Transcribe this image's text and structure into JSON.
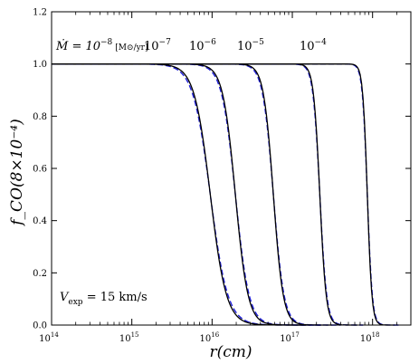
{
  "chart_data": {
    "type": "line",
    "title": "",
    "xlabel": "r(cm)",
    "ylabel": "f_CO(8×10⁻⁴)",
    "x_scale": "log",
    "xlim": [
      100000000000000.0,
      3e+18
    ],
    "ylim": [
      0.0,
      1.2
    ],
    "x_ticks": [
      {
        "value": 100000000000000.0,
        "label_base": "10",
        "label_exp": "14"
      },
      {
        "value": 1000000000000000.0,
        "label_base": "10",
        "label_exp": "15"
      },
      {
        "value": 1e+16,
        "label_base": "10",
        "label_exp": "16"
      },
      {
        "value": 1e+17,
        "label_base": "10",
        "label_exp": "17"
      },
      {
        "value": 1e+18,
        "label_base": "10",
        "label_exp": "18"
      }
    ],
    "y_ticks": [
      {
        "value": 0.0,
        "label": "0.0"
      },
      {
        "value": 0.2,
        "label": "0.2"
      },
      {
        "value": 0.4,
        "label": "0.4"
      },
      {
        "value": 0.6,
        "label": "0.6"
      },
      {
        "value": 0.8,
        "label": "0.8"
      },
      {
        "value": 1.0,
        "label": "1.0"
      },
      {
        "value": 1.2,
        "label": "1.2"
      }
    ],
    "grid": false,
    "legend": "none",
    "line_styles": {
      "model": "solid",
      "fit": "dashed"
    },
    "colors": {
      "model": "#000000",
      "fit": "#1f1fd8"
    },
    "series": [
      {
        "id": "mdot-1e-8",
        "half_radius": 9500000000000000.0,
        "width_dex": 0.23,
        "x": [
          100000000000000.0,
          1000000000000000.0,
          3000000000000000.0,
          5000000000000000.0,
          7000000000000000.0,
          1e+16,
          1.5e+16,
          2e+16,
          3e+16,
          5e+16
        ],
        "y": [
          1.0,
          0.985,
          0.9,
          0.75,
          0.6,
          0.42,
          0.2,
          0.1,
          0.03,
          0.0
        ]
      },
      {
        "id": "mdot-1e-7",
        "half_radius": 1.95e+16,
        "width_dex": 0.18,
        "x": [
          100000000000000.0,
          3000000000000000.0,
          6000000000000000.0,
          1e+16,
          1.5e+16,
          2e+16,
          3e+16,
          5e+16,
          7e+16,
          1e+17
        ],
        "y": [
          1.0,
          0.99,
          0.93,
          0.78,
          0.62,
          0.48,
          0.25,
          0.05,
          0.01,
          0.0
        ]
      },
      {
        "id": "mdot-1e-6",
        "half_radius": 5.8e+16,
        "width_dex": 0.14,
        "x": [
          100000000000000.0,
          1e+16,
          2e+16,
          3e+16,
          4e+16,
          6e+16,
          8e+16,
          1e+17,
          1.5e+17,
          2e+17
        ],
        "y": [
          1.0,
          0.995,
          0.94,
          0.84,
          0.72,
          0.48,
          0.26,
          0.12,
          0.01,
          0.0
        ]
      },
      {
        "id": "mdot-1e-5",
        "half_radius": 2.2e+17,
        "width_dex": 0.09,
        "x": [
          100000000000000.0,
          5e+16,
          1e+17,
          1.5e+17,
          2e+17,
          2.5e+17,
          3e+17,
          4e+17,
          5e+17
        ],
        "y": [
          1.0,
          0.995,
          0.93,
          0.74,
          0.56,
          0.37,
          0.2,
          0.03,
          0.0
        ]
      },
      {
        "id": "mdot-1e-4",
        "half_radius": 8.6e+17,
        "width_dex": 0.065,
        "x": [
          100000000000000.0,
          4e+17,
          5e+17,
          6e+17,
          7e+17,
          8e+17,
          9e+17,
          1e+18,
          1.2e+18,
          1.5e+18
        ],
        "y": [
          1.0,
          0.97,
          0.92,
          0.83,
          0.7,
          0.56,
          0.42,
          0.28,
          0.08,
          0.0
        ]
      }
    ],
    "annotations": {
      "mdot_prefix": "Ṁ = 10",
      "mdot_prefix_exp": "−8",
      "mdot_units": "[M⊙/yr]",
      "rates": [
        {
          "base": "10",
          "exp": "−7"
        },
        {
          "base": "10",
          "exp": "−6"
        },
        {
          "base": "10",
          "exp": "−5"
        },
        {
          "base": "10",
          "exp": "−4"
        }
      ],
      "vexp_label": "V",
      "vexp_sub": "exp",
      "vexp_value": " = 15 km/s"
    }
  }
}
